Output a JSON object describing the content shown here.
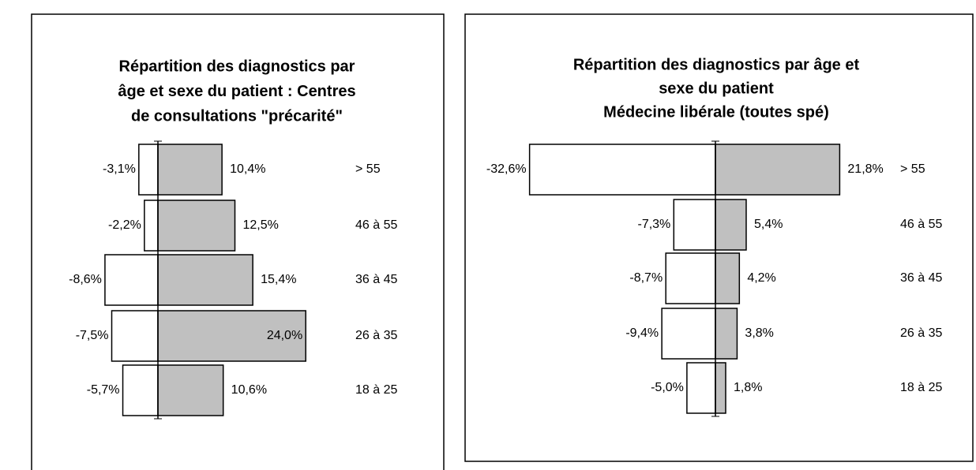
{
  "chart_data": [
    {
      "type": "bar",
      "title": [
        "Répartition des diagnostics par",
        "âge et sexe du patient : Centres",
        "de consultations \"précarité\""
      ],
      "categories": [
        "> 55",
        "46 à 55",
        "36 à 45",
        "26 à 35",
        "18 à 25"
      ],
      "series": [
        {
          "color": "#ffffff",
          "values": [
            -3.1,
            -2.2,
            -8.6,
            -7.5,
            -5.7
          ],
          "value_labels": [
            "-3,1%",
            "-2,2%",
            "-8,6%",
            "-7,5%",
            "-5,7%"
          ]
        },
        {
          "color": "#c0c0c0",
          "values": [
            10.4,
            12.5,
            15.4,
            24.0,
            10.6
          ],
          "value_labels": [
            "10,4%",
            "12,5%",
            "15,4%",
            "24,0%",
            "10,6%"
          ]
        }
      ]
    },
    {
      "type": "bar",
      "title": [
        "Répartition des diagnostics par âge et",
        "sexe du patient",
        "Médecine libérale (toutes spé)"
      ],
      "categories": [
        "> 55",
        "46 à 55",
        "36 à 45",
        "26 à 35",
        "18 à 25"
      ],
      "series": [
        {
          "color": "#ffffff",
          "values": [
            -32.6,
            -7.3,
            -8.7,
            -9.4,
            -5.0
          ],
          "value_labels": [
            "-32,6%",
            "-7,3%",
            "-8,7%",
            "-9,4%",
            "-5,0%"
          ]
        },
        {
          "color": "#c0c0c0",
          "values": [
            21.8,
            5.4,
            4.2,
            3.8,
            1.8
          ],
          "value_labels": [
            "21,8%",
            "5,4%",
            "4,2%",
            "3,8%",
            "1,8%"
          ]
        }
      ]
    }
  ]
}
